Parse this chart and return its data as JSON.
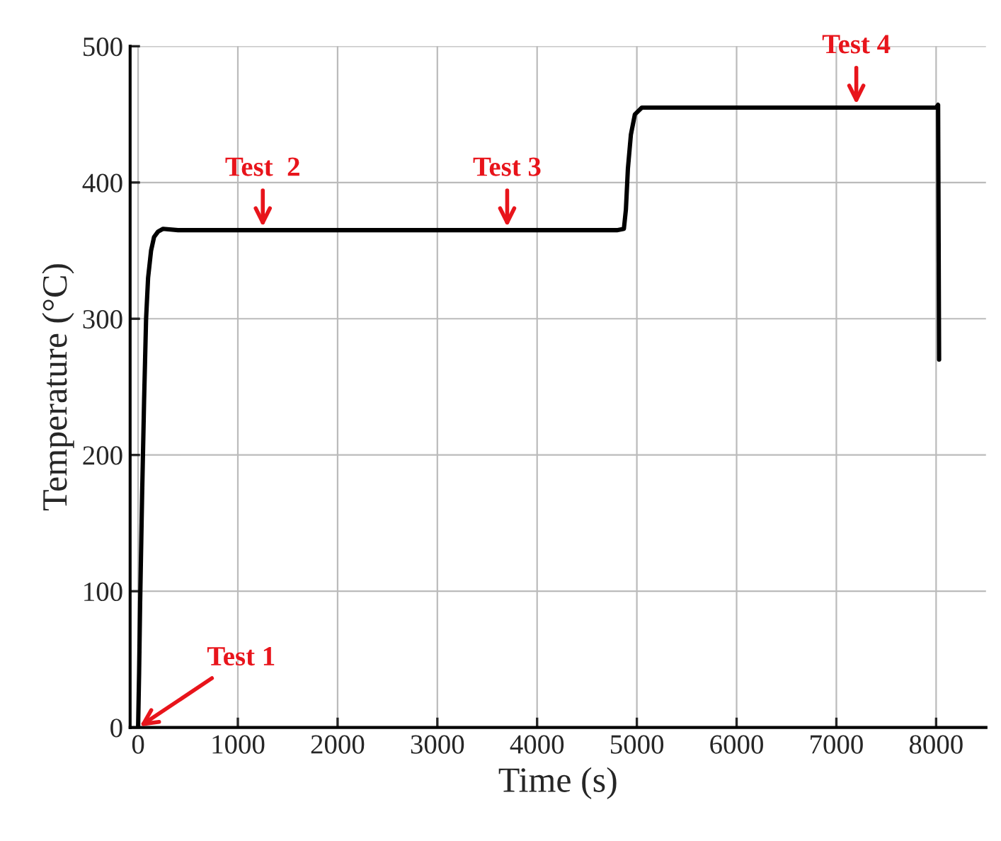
{
  "chart_data": {
    "type": "line",
    "xlabel": "Time (s)",
    "ylabel": "Temperature (°C)",
    "xlim": [
      -80,
      8500
    ],
    "xticks": [
      0,
      1000,
      2000,
      3000,
      4000,
      5000,
      6000,
      7000,
      8000
    ],
    "ylim": [
      0,
      500
    ],
    "yticks": [
      0,
      100,
      200,
      300,
      400,
      500
    ],
    "grid": true,
    "series": [
      {
        "color": "#000000",
        "x": [
          0,
          10,
          20,
          40,
          60,
          80,
          100,
          130,
          160,
          200,
          250,
          400,
          1000,
          2000,
          3000,
          4000,
          4800,
          4870,
          4890,
          4910,
          4940,
          4980,
          5050,
          5200,
          6000,
          7000,
          8000,
          8020,
          8030
        ],
        "values": [
          0,
          40,
          90,
          170,
          240,
          300,
          330,
          350,
          360,
          364,
          366,
          365,
          365,
          365,
          365,
          365,
          365,
          366,
          380,
          410,
          435,
          450,
          455,
          455,
          455,
          455,
          455,
          457,
          270
        ]
      }
    ],
    "annotations": [
      {
        "text": "Test 1",
        "x": 0,
        "y": 0
      },
      {
        "text": "Test  2",
        "x": 1250,
        "y": 366
      },
      {
        "text": "Test 3",
        "x": 3700,
        "y": 366
      },
      {
        "text": "Test 4",
        "x": 7200,
        "y": 456
      }
    ]
  }
}
